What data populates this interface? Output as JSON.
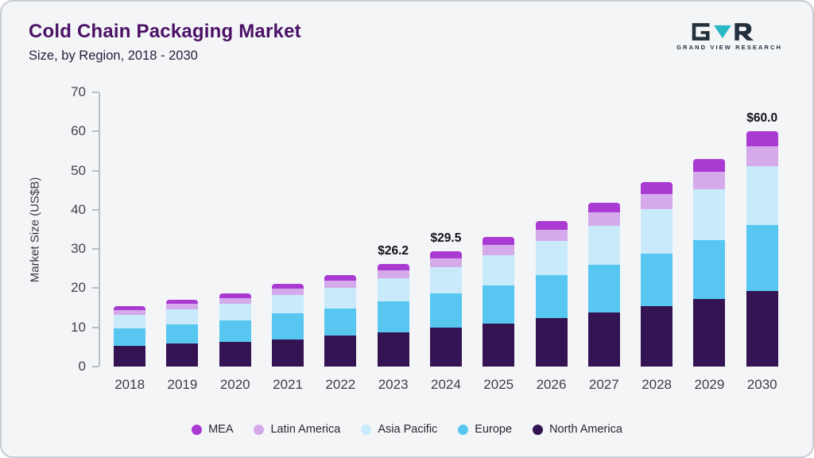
{
  "header": {
    "title": "Cold Chain Packaging Market",
    "subtitle": "Size, by Region, 2018 - 2030",
    "logo_text": "GRAND VIEW RESEARCH"
  },
  "colors": {
    "background": "#f4f5f7",
    "card_border": "#c8cdd5",
    "title": "#4a1166",
    "subtitle": "#241e3c",
    "axis": "#b7bcc6",
    "tick_text": "#43434e",
    "annotation_text": "#101018",
    "logo_navy": "#22303c",
    "logo_teal": "#2ab8c6"
  },
  "chart_data": {
    "type": "bar",
    "stacked": true,
    "title": "Cold Chain Packaging Market",
    "subtitle": "Size, by Region, 2018 - 2030",
    "xlabel": "",
    "ylabel": "Market Size (US$B)",
    "ylim": [
      0,
      70
    ],
    "ytick_step": 10,
    "grid": false,
    "legend_position": "bottom",
    "categories": [
      "2018",
      "2019",
      "2020",
      "2021",
      "2022",
      "2023",
      "2024",
      "2025",
      "2026",
      "2027",
      "2028",
      "2029",
      "2030"
    ],
    "series": [
      {
        "name": "North America",
        "color": "#331352",
        "values": [
          5.2,
          5.8,
          6.2,
          7.0,
          7.9,
          8.8,
          9.9,
          11.0,
          12.3,
          13.9,
          15.5,
          17.2,
          19.3
        ]
      },
      {
        "name": "Europe",
        "color": "#57c7f2",
        "values": [
          4.5,
          5.0,
          5.6,
          6.5,
          6.9,
          7.8,
          8.7,
          9.8,
          11.0,
          12.0,
          13.4,
          15.0,
          16.8
        ]
      },
      {
        "name": "Asia Pacific",
        "color": "#c8eafb",
        "values": [
          3.5,
          3.9,
          4.2,
          4.8,
          5.3,
          6.0,
          6.8,
          7.6,
          8.7,
          10.0,
          11.3,
          13.0,
          15.0
        ]
      },
      {
        "name": "Latin America",
        "color": "#d5aaeb",
        "values": [
          1.3,
          1.4,
          1.5,
          1.6,
          1.8,
          2.0,
          2.3,
          2.6,
          3.0,
          3.4,
          3.9,
          4.5,
          5.2
        ]
      },
      {
        "name": "MEA",
        "color": "#a93bd2",
        "values": [
          1.0,
          1.0,
          1.2,
          1.3,
          1.5,
          1.6,
          1.8,
          2.0,
          2.2,
          2.6,
          3.0,
          3.3,
          3.7
        ]
      }
    ],
    "totals": [
      15.5,
      17.1,
      18.7,
      21.2,
      23.4,
      26.2,
      29.5,
      33.0,
      37.2,
      41.9,
      47.1,
      53.0,
      60.0
    ],
    "legend": [
      "MEA",
      "Latin America",
      "Asia Pacific",
      "Europe",
      "North America"
    ],
    "annotations": [
      {
        "category": "2023",
        "label": "$26.2"
      },
      {
        "category": "2024",
        "label": "$29.5"
      },
      {
        "category": "2030",
        "label": "$60.0"
      }
    ]
  }
}
